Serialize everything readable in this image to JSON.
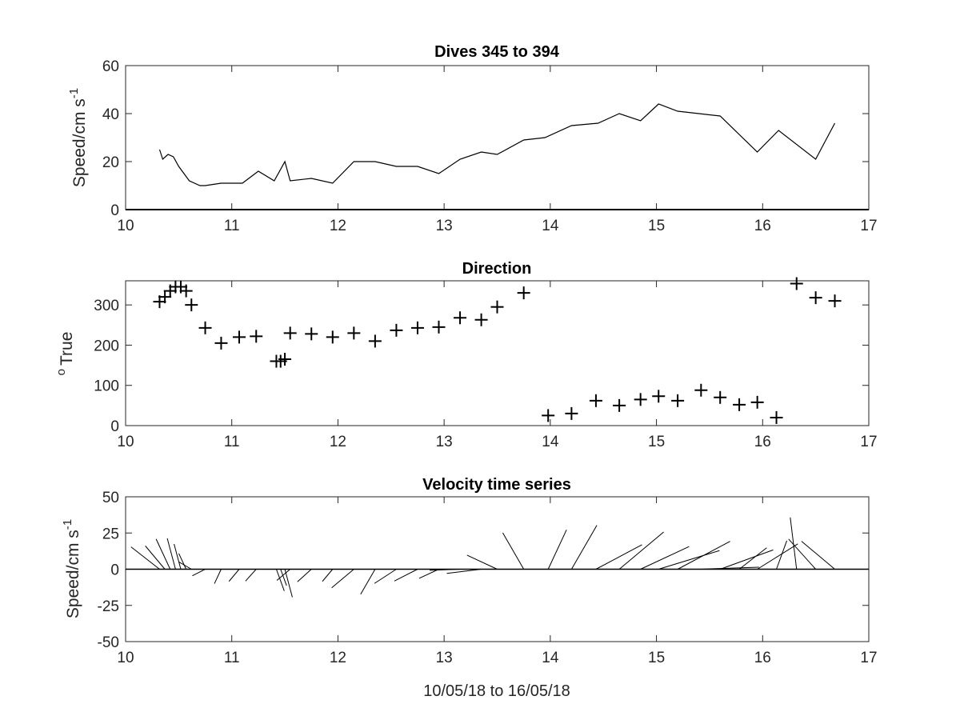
{
  "chart_data": [
    {
      "type": "line",
      "title": "Dives 345 to 394",
      "ylabel": "Speed/cm s",
      "ylabel_sup": "-1",
      "xlim": [
        10,
        17
      ],
      "ylim": [
        0,
        60
      ],
      "xticks": [
        "10",
        "11",
        "12",
        "13",
        "14",
        "15",
        "16",
        "17"
      ],
      "yticks": [
        "0",
        "20",
        "40",
        "60"
      ],
      "xtick_values": [
        10,
        11,
        12,
        13,
        14,
        15,
        16,
        17
      ],
      "ytick_values": [
        0,
        20,
        40,
        60
      ],
      "series": [
        {
          "x": [
            10.32,
            10.35,
            10.4,
            10.45,
            10.5,
            10.6,
            10.7,
            10.75,
            10.9,
            11.0,
            11.1,
            11.25,
            11.4,
            11.5,
            11.55,
            11.75,
            11.95,
            12.15,
            12.35,
            12.55,
            12.75,
            12.95,
            13.15,
            13.35,
            13.5,
            13.75,
            13.95,
            14.2,
            14.45,
            14.65,
            14.85,
            15.02,
            15.2,
            15.4,
            15.6,
            15.95,
            16.15,
            16.5,
            16.68
          ],
          "y": [
            25,
            21,
            23,
            22,
            18,
            12,
            10,
            10,
            11,
            11,
            11,
            16,
            12,
            20,
            12,
            13,
            11,
            20,
            20,
            18,
            18,
            15,
            21,
            24,
            23,
            29,
            30,
            35,
            36,
            40,
            37,
            44,
            41,
            40,
            39,
            24,
            33,
            21,
            36
          ]
        }
      ],
      "grid": false
    },
    {
      "type": "scatter",
      "title": "Direction",
      "ylabel": "True",
      "ylabel_prefix": "o",
      "xlim": [
        10,
        17
      ],
      "ylim": [
        0,
        360
      ],
      "xticks": [
        "10",
        "11",
        "12",
        "13",
        "14",
        "15",
        "16",
        "17"
      ],
      "yticks": [
        "0",
        "100",
        "200",
        "300"
      ],
      "xtick_values": [
        10,
        11,
        12,
        13,
        14,
        15,
        16,
        17
      ],
      "ytick_values": [
        0,
        100,
        200,
        300
      ],
      "marker": "+",
      "series": [
        {
          "x": [
            10.32,
            10.37,
            10.42,
            10.47,
            10.52,
            10.57,
            10.62,
            10.75,
            10.9,
            11.07,
            11.23,
            11.42,
            11.46,
            11.5,
            11.55,
            11.75,
            11.95,
            12.15,
            12.35,
            12.55,
            12.75,
            12.95,
            13.15,
            13.35,
            13.5,
            13.75,
            13.98,
            14.2,
            14.43,
            14.65,
            14.85,
            15.02,
            15.2,
            15.42,
            15.6,
            15.78,
            15.95,
            16.13,
            16.32,
            16.5,
            16.68
          ],
          "y": [
            308,
            320,
            335,
            345,
            345,
            335,
            300,
            243,
            205,
            220,
            222,
            160,
            160,
            165,
            230,
            228,
            220,
            230,
            210,
            237,
            243,
            245,
            268,
            263,
            295,
            330,
            25,
            30,
            62,
            50,
            65,
            73,
            62,
            88,
            70,
            52,
            58,
            20,
            353,
            318,
            310
          ]
        }
      ],
      "grid": false
    },
    {
      "type": "stick",
      "title": "Velocity time series",
      "ylabel": "Speed/cm s",
      "ylabel_sup": "-1",
      "xlabel": "10/05/18 to 16/05/18",
      "xlim": [
        10,
        17
      ],
      "ylim": [
        -50,
        50
      ],
      "xticks": [
        "10",
        "11",
        "12",
        "13",
        "14",
        "15",
        "16",
        "17"
      ],
      "yticks": [
        "-50",
        "-25",
        "0",
        "25",
        "50"
      ],
      "xtick_values": [
        10,
        11,
        12,
        13,
        14,
        15,
        16,
        17
      ],
      "ytick_values": [
        -50,
        -25,
        0,
        25,
        50
      ],
      "series": [
        {
          "x": [
            10.32,
            10.37,
            10.42,
            10.47,
            10.52,
            10.57,
            10.62,
            10.75,
            10.9,
            11.07,
            11.23,
            11.42,
            11.46,
            11.5,
            11.55,
            11.75,
            11.95,
            12.15,
            12.35,
            12.55,
            12.75,
            12.95,
            13.15,
            13.35,
            13.5,
            13.75,
            13.98,
            14.2,
            14.43,
            14.65,
            14.85,
            15.02,
            15.2,
            15.42,
            15.6,
            15.78,
            15.95,
            16.13,
            16.32,
            16.5,
            16.68
          ],
          "speed": [
            25,
            21,
            23,
            22,
            18,
            12,
            10,
            10,
            11,
            11,
            11,
            16,
            12,
            20,
            12,
            13,
            11,
            20,
            20,
            18,
            18,
            15,
            21,
            24,
            23,
            29,
            30,
            35,
            36,
            40,
            37,
            44,
            41,
            40,
            39,
            24,
            33,
            21,
            36,
            28,
            30
          ],
          "direction": [
            308,
            320,
            335,
            345,
            345,
            335,
            300,
            243,
            205,
            220,
            222,
            160,
            160,
            165,
            230,
            228,
            220,
            230,
            210,
            237,
            243,
            245,
            268,
            263,
            295,
            330,
            25,
            30,
            62,
            50,
            65,
            73,
            62,
            88,
            70,
            52,
            58,
            20,
            353,
            318,
            310
          ]
        }
      ],
      "grid": false
    }
  ],
  "colors": {
    "line": "#000000",
    "axes": "#262626",
    "background": "#ffffff"
  }
}
